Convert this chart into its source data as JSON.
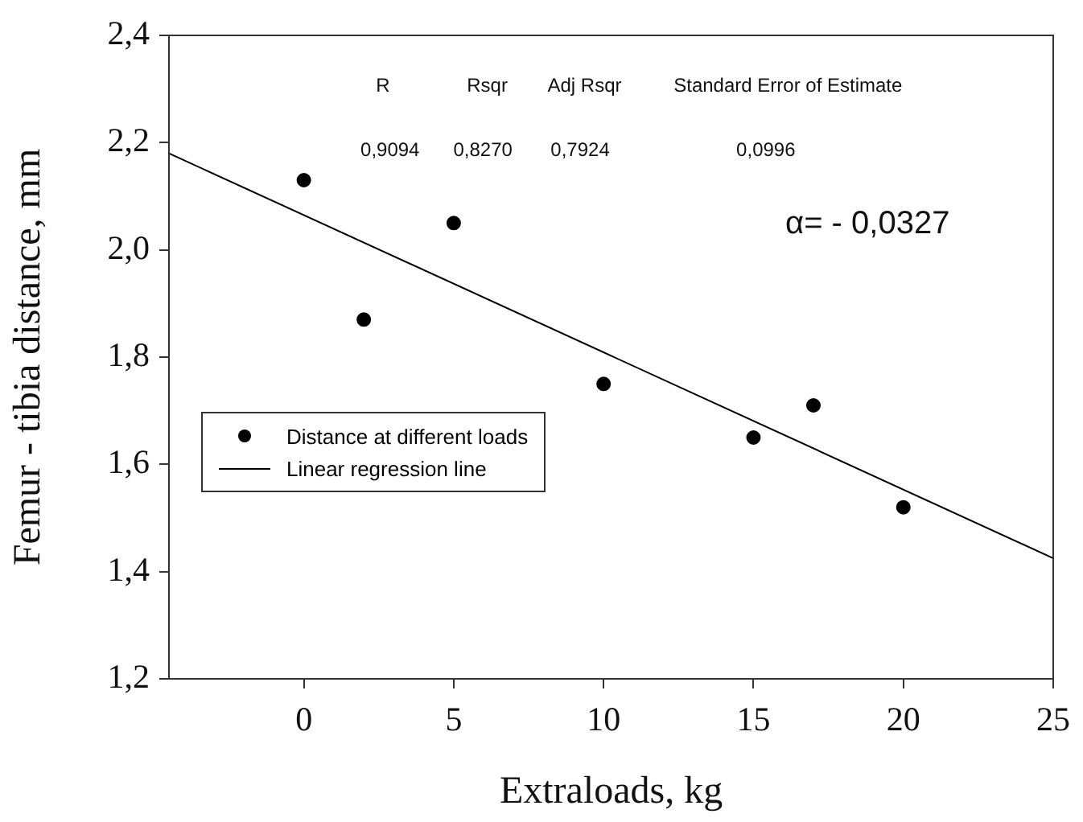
{
  "chart_data": {
    "type": "scatter",
    "xlabel": "Extraloads, kg",
    "ylabel": "Femur - tibia distance, mm",
    "xlim": [
      -4.5,
      25
    ],
    "xticks": [
      0,
      5,
      10,
      15,
      20,
      25
    ],
    "ylim": [
      1.2,
      2.4
    ],
    "yticks": [
      {
        "value": 1.2,
        "label": "1,2"
      },
      {
        "value": 1.4,
        "label": "1,4"
      },
      {
        "value": 1.6,
        "label": "1,6"
      },
      {
        "value": 1.8,
        "label": "1,8"
      },
      {
        "value": 2.0,
        "label": "2,0"
      },
      {
        "value": 2.2,
        "label": "2,2"
      },
      {
        "value": 2.4,
        "label": "2,4"
      }
    ],
    "grid": false,
    "legend": "bottom left",
    "marker": "circle",
    "series": [
      {
        "name": "Distance at different loads",
        "color": "#000000",
        "x": [
          0,
          2,
          5,
          10,
          15,
          17,
          20
        ],
        "values": [
          2.13,
          1.87,
          2.05,
          1.75,
          1.65,
          1.71,
          1.52
        ]
      },
      {
        "name": "Linear regression line",
        "type": "line",
        "color": "#000000",
        "marker": "none",
        "line_style": "solid",
        "x": [
          -4.5,
          25
        ],
        "values": [
          2.18,
          1.425
        ]
      }
    ],
    "annotations": [
      "R",
      "Rsqr",
      "Adj Rsqr",
      "Standard Error of Estimate",
      "0,9094",
      "0,8270",
      "0,7924",
      "0,0996",
      "α= - 0,0327"
    ]
  }
}
